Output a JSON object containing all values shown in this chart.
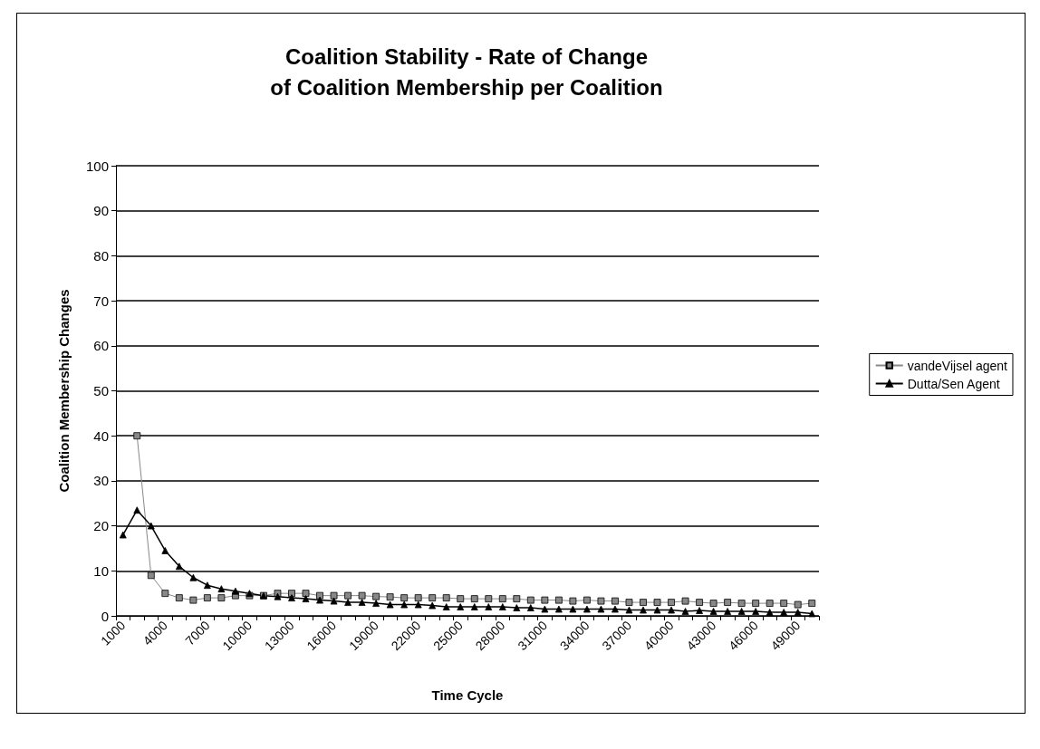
{
  "chart_data": {
    "type": "line",
    "title": "Coalition Stability - Rate of Change\nof Coalition Membership per Coalition",
    "xlabel": "Time Cycle",
    "ylabel": "Coalition Membership Changes",
    "categories": [
      "1000",
      null,
      null,
      "4000",
      null,
      null,
      "7000",
      null,
      null,
      "10000",
      null,
      null,
      "13000",
      null,
      null,
      "16000",
      null,
      null,
      "19000",
      null,
      null,
      "22000",
      null,
      null,
      "25000",
      null,
      null,
      "28000",
      null,
      null,
      "31000",
      null,
      null,
      "34000",
      null,
      null,
      "37000",
      null,
      null,
      "40000",
      null,
      null,
      "43000",
      null,
      null,
      "46000",
      null,
      null,
      "49000",
      null
    ],
    "series": [
      {
        "name": "vandeVijsel agent",
        "color": "#888888",
        "marker": "square",
        "values": [
          null,
          40,
          9,
          5,
          4,
          3.5,
          4,
          4,
          4.5,
          4.5,
          4.5,
          5,
          5,
          5,
          4.5,
          4.5,
          4.5,
          4.5,
          4.3,
          4.2,
          4,
          4,
          4,
          4,
          3.8,
          3.8,
          3.8,
          3.8,
          3.8,
          3.5,
          3.5,
          3.5,
          3.3,
          3.5,
          3.3,
          3.3,
          3,
          3,
          3,
          3,
          3.3,
          3,
          2.8,
          3,
          2.8,
          2.8,
          2.8,
          2.8,
          2.5,
          2.8
        ]
      },
      {
        "name": "Dutta/Sen Agent",
        "color": "#000000",
        "marker": "triangle",
        "values": [
          18,
          23.5,
          20,
          14.5,
          11,
          8.5,
          6.8,
          6,
          5.5,
          5,
          4.5,
          4.3,
          4,
          3.8,
          3.5,
          3.3,
          3,
          3,
          2.8,
          2.5,
          2.5,
          2.5,
          2.3,
          2,
          2,
          2,
          2,
          2,
          1.8,
          1.8,
          1.5,
          1.5,
          1.5,
          1.5,
          1.5,
          1.5,
          1.3,
          1.3,
          1.3,
          1.3,
          1,
          1.2,
          1,
          1,
          1,
          1,
          0.8,
          0.8,
          0.8,
          0.5
        ]
      }
    ],
    "ylim": [
      0,
      100
    ],
    "yticks": [
      0,
      10,
      20,
      30,
      40,
      50,
      60,
      70,
      80,
      90,
      100
    ],
    "grid": "y",
    "legend": "right",
    "line_style": "solid"
  }
}
